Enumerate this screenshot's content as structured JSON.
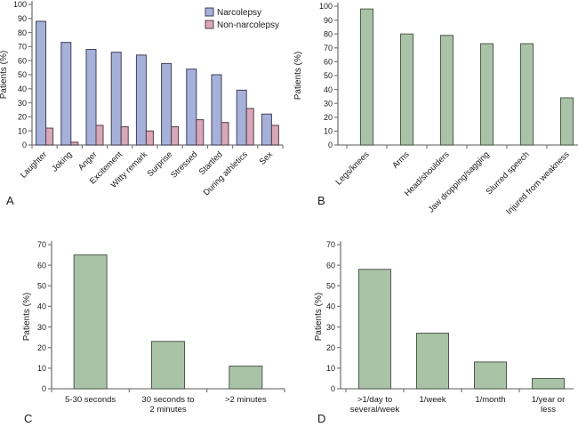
{
  "figure": {
    "panels": [
      {
        "id": "A",
        "label": "A"
      },
      {
        "id": "B",
        "label": "B"
      },
      {
        "id": "C",
        "label": "C"
      },
      {
        "id": "D",
        "label": "D"
      }
    ]
  },
  "colors": {
    "axis": "#7a7a7a",
    "text": "#1a1a1a",
    "narcolepsy_fill": "#a6b1da",
    "narcolepsy_border": "#3e3f5c",
    "non_narcolepsy_fill": "#d8a7b8",
    "non_narcolepsy_border": "#544049",
    "green_fill": "#a9c3a6",
    "green_border": "#4f5a4b",
    "background": "#ffffff"
  },
  "chart_data": [
    {
      "panel": "A",
      "type": "bar",
      "ylabel": "Patients (%)",
      "ylim": [
        0,
        100
      ],
      "ytick_step": 10,
      "grid": false,
      "legend_position": "top-right",
      "x_label_rotation": 45,
      "categories": [
        "Laughter",
        "Joking",
        "Anger",
        "Excitement",
        "Witty remark",
        "Surprise",
        "Stressed",
        "Startled",
        "During athletics",
        "Sex"
      ],
      "series": [
        {
          "name": "Narcolepsy",
          "fill": "#a6b1da",
          "border": "#3e3f5c",
          "values": [
            88,
            73,
            68,
            66,
            64,
            58,
            54,
            50,
            39,
            22
          ]
        },
        {
          "name": "Non-narcolepsy",
          "fill": "#d8a7b8",
          "border": "#544049",
          "values": [
            12,
            2,
            14,
            13,
            10,
            13,
            18,
            16,
            26,
            14
          ]
        }
      ]
    },
    {
      "panel": "B",
      "type": "bar",
      "ylabel": "Patients (%)",
      "ylim": [
        0,
        100
      ],
      "ytick_step": 10,
      "grid": false,
      "legend_position": "none",
      "x_label_rotation": 45,
      "categories": [
        "Legs/knees",
        "Arms",
        "Head/shoulders",
        "Jaw dropping/sagging",
        "Slurred speech",
        "Injured from weakness"
      ],
      "series": [
        {
          "name": "Narcolepsy",
          "fill": "#a9c3a6",
          "border": "#4f5a4b",
          "values": [
            98,
            80,
            79,
            73,
            73,
            34
          ]
        }
      ]
    },
    {
      "panel": "C",
      "type": "bar",
      "ylabel": "Patients (%)",
      "ylim": [
        0,
        70
      ],
      "ytick_step": 10,
      "grid": false,
      "legend_position": "none",
      "x_label_rotation": 0,
      "categories": [
        "5-30 seconds",
        "30 seconds to\n2 minutes",
        ">2 minutes"
      ],
      "series": [
        {
          "name": "Narcolepsy",
          "fill": "#a9c3a6",
          "border": "#4f5a4b",
          "values": [
            65,
            23,
            11
          ]
        }
      ]
    },
    {
      "panel": "D",
      "type": "bar",
      "ylabel": "Patients (%)",
      "ylim": [
        0,
        70
      ],
      "ytick_step": 10,
      "grid": false,
      "legend_position": "none",
      "x_label_rotation": 0,
      "categories": [
        ">1/day to\nseveral/week",
        "1/week",
        "1/month",
        "1/year or\nless"
      ],
      "series": [
        {
          "name": "Narcolepsy",
          "fill": "#a9c3a6",
          "border": "#4f5a4b",
          "values": [
            58,
            27,
            13,
            5
          ]
        }
      ]
    }
  ]
}
